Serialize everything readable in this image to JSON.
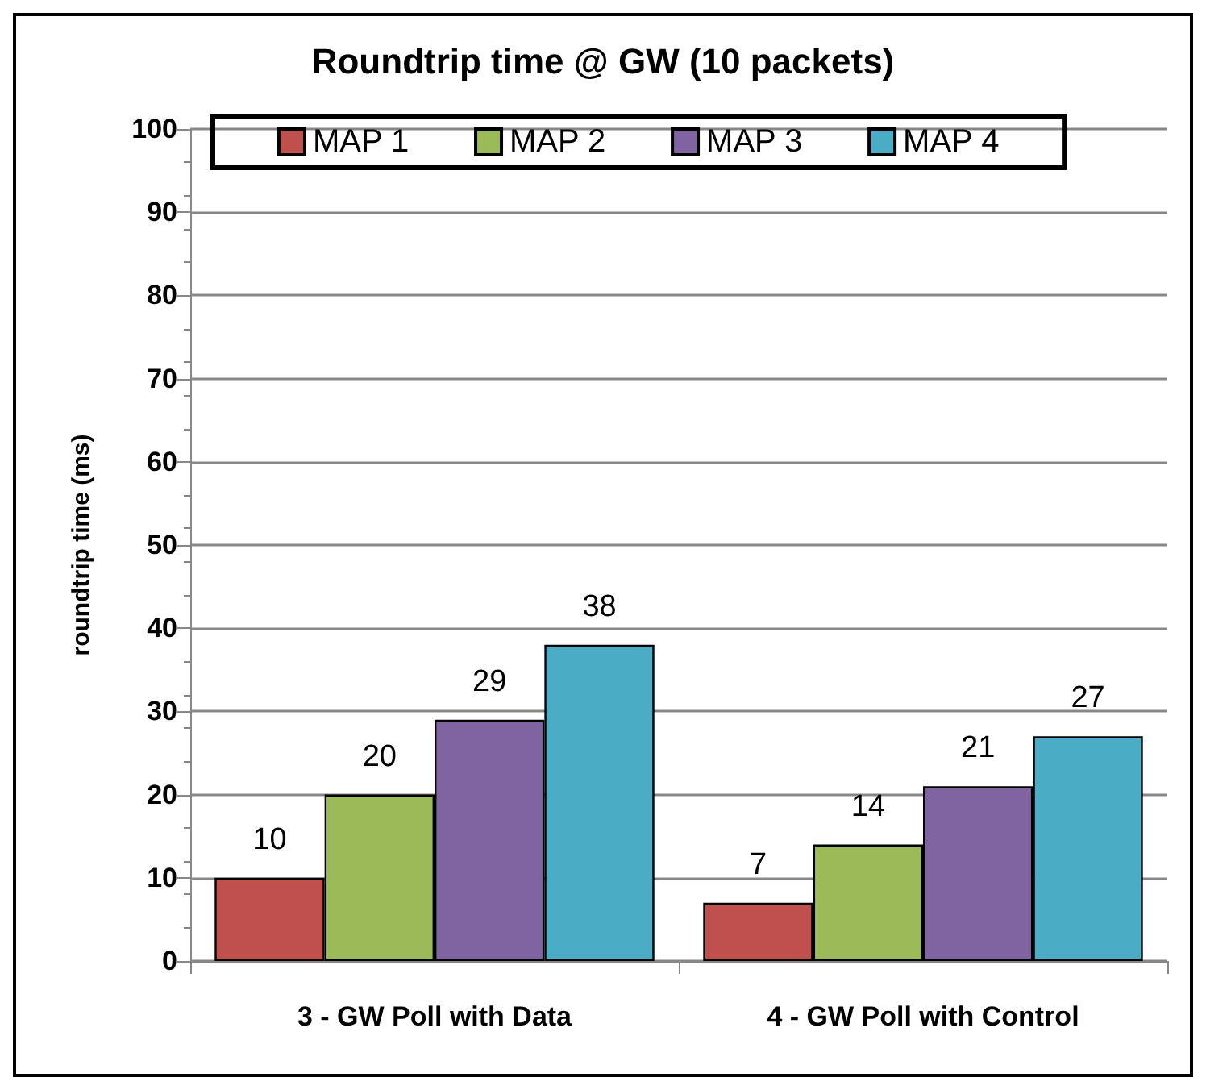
{
  "chart_data": {
    "type": "bar",
    "title": "Roundtrip time @ GW (10 packets)",
    "ylabel": "roundtrip time (ms)",
    "categories": [
      "3 - GW Poll with Data",
      "4 - GW Poll with Control"
    ],
    "series": [
      {
        "name": "MAP 1",
        "color": "#c0504d",
        "values": [
          10,
          7
        ]
      },
      {
        "name": "MAP 2",
        "color": "#9bbb59",
        "values": [
          20,
          14
        ]
      },
      {
        "name": "MAP 3",
        "color": "#8064a2",
        "values": [
          29,
          21
        ]
      },
      {
        "name": "MAP 4",
        "color": "#4bacc6",
        "values": [
          38,
          27
        ]
      }
    ],
    "ylim": [
      0,
      100
    ],
    "yticks": [
      0,
      10,
      20,
      30,
      40,
      50,
      60,
      70,
      80,
      90,
      100
    ],
    "grid": "y",
    "legend": "top",
    "data_labels": true
  }
}
